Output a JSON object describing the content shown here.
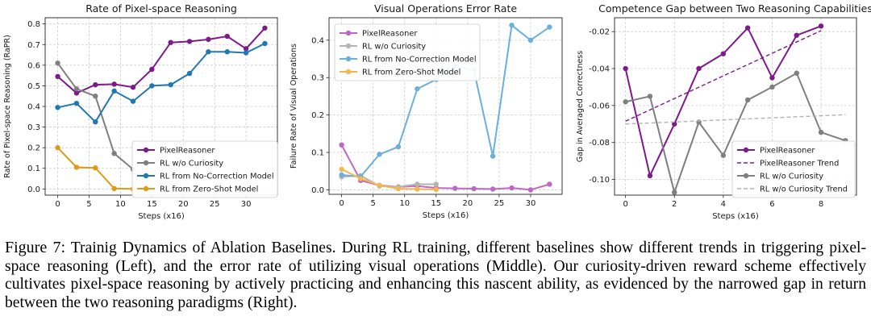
{
  "colors": {
    "purple": "#7e1a8c",
    "gray": "#7f7f7f",
    "blue": "#1f77b4",
    "orange": "#e09a1a",
    "lightpurple": "#c067c6",
    "lightgray": "#b4b4b4",
    "lightblue": "#6ab0da",
    "lightorange": "#f2b84f"
  },
  "chart_data": [
    {
      "type": "line",
      "title": "Rate of Pixel-space Reasoning",
      "xlabel": "Steps (x16)",
      "ylabel": "Rate of Pixel-space Reasoning (RaPR)",
      "xlim": [
        -2,
        35
      ],
      "ylim": [
        -0.03,
        0.83
      ],
      "xticks": [
        0,
        5,
        10,
        15,
        20,
        25,
        30
      ],
      "yticks": [
        0.0,
        0.1,
        0.2,
        0.3,
        0.4,
        0.5,
        0.6,
        0.7,
        0.8
      ],
      "ytick_decimals": 1,
      "grid": true,
      "legend_position": "lower-right",
      "series": [
        {
          "name": "PixelReasoner",
          "color": "purple",
          "marker": "circle",
          "x": [
            0,
            3,
            6,
            9,
            12,
            15,
            18,
            21,
            24,
            27,
            30,
            33
          ],
          "y": [
            0.545,
            0.465,
            0.505,
            0.508,
            0.493,
            0.58,
            0.71,
            0.715,
            0.725,
            0.74,
            0.68,
            0.78
          ]
        },
        {
          "name": "RL w/o Curiosity",
          "color": "gray",
          "marker": "circle",
          "x": [
            0,
            3,
            6,
            9,
            12
          ],
          "y": [
            0.61,
            0.485,
            0.45,
            0.172,
            0.095
          ]
        },
        {
          "name": "RL from No-Correction Model",
          "color": "blue",
          "marker": "circle",
          "x": [
            0,
            3,
            6,
            9,
            12,
            15,
            18,
            21,
            24,
            27,
            30,
            33
          ],
          "y": [
            0.395,
            0.415,
            0.325,
            0.475,
            0.425,
            0.5,
            0.505,
            0.56,
            0.665,
            0.665,
            0.66,
            0.705
          ]
        },
        {
          "name": "RL from Zero-Shot Model",
          "color": "orange",
          "marker": "circle",
          "x": [
            0,
            3,
            6,
            9,
            12
          ],
          "y": [
            0.2,
            0.105,
            0.102,
            0.002,
            0.0
          ]
        }
      ]
    },
    {
      "type": "line",
      "title": "Visual Operations Error Rate",
      "xlabel": "Steps (x16)",
      "ylabel": "Failure Rate of Visual Operations",
      "xlim": [
        -2,
        35
      ],
      "ylim": [
        -0.012,
        0.46
      ],
      "xticks": [
        0,
        5,
        10,
        15,
        20,
        25,
        30
      ],
      "yticks": [
        0.0,
        0.1,
        0.2,
        0.3,
        0.4
      ],
      "ytick_decimals": 1,
      "grid": true,
      "legend_position": "upper-left",
      "series": [
        {
          "name": "PixelReasoner",
          "color": "lightpurple",
          "marker": "circle",
          "x": [
            0,
            3,
            6,
            9,
            12,
            15,
            18,
            21,
            24,
            27,
            30,
            33
          ],
          "y": [
            0.12,
            0.025,
            0.012,
            0.008,
            0.01,
            0.005,
            0.004,
            0.003,
            0.002,
            0.005,
            0.0,
            0.015
          ]
        },
        {
          "name": "RL w/o Curiosity",
          "color": "lightgray",
          "marker": "circle",
          "x": [
            0,
            3,
            6,
            9,
            12,
            15
          ],
          "y": [
            0.035,
            0.038,
            0.01,
            0.008,
            0.015,
            0.015
          ]
        },
        {
          "name": "RL from No-Correction Model",
          "color": "lightblue",
          "marker": "circle",
          "x": [
            0,
            3,
            6,
            9,
            12,
            15,
            18,
            21,
            24,
            27,
            30,
            33
          ],
          "y": [
            0.04,
            0.035,
            0.095,
            0.115,
            0.27,
            0.295,
            0.33,
            0.32,
            0.09,
            0.44,
            0.4,
            0.435
          ]
        },
        {
          "name": "RL from Zero-Shot Model",
          "color": "lightorange",
          "marker": "circle",
          "x": [
            0,
            3,
            6,
            9,
            12,
            15
          ],
          "y": [
            0.055,
            0.03,
            0.012,
            0.003,
            0.002,
            0.001
          ]
        }
      ]
    },
    {
      "type": "line",
      "title": "Competence Gap between Two Reasoning Capabilities",
      "xlabel": "Steps (x16)",
      "ylabel": "Gap in Averaged Correctness",
      "xlim": [
        -0.45,
        9.45
      ],
      "ylim": [
        -0.1085,
        -0.0125
      ],
      "xticks": [
        0,
        2,
        4,
        6,
        8
      ],
      "yticks": [
        -0.1,
        -0.08,
        -0.06,
        -0.04,
        -0.02
      ],
      "ytick_decimals": 2,
      "grid": true,
      "legend_position": "lower-right",
      "series": [
        {
          "name": "PixelReasoner",
          "color": "purple",
          "marker": "circle",
          "x": [
            0,
            1,
            2,
            3,
            4,
            5,
            6,
            7,
            8
          ],
          "y": [
            -0.04,
            -0.098,
            -0.07,
            -0.04,
            -0.032,
            -0.018,
            -0.045,
            -0.022,
            -0.017
          ]
        },
        {
          "name": "PixelReasoner Trend",
          "color": "purple",
          "dashed": true,
          "x": [
            0,
            8
          ],
          "y": [
            -0.0685,
            -0.0195
          ]
        },
        {
          "name": "RL w/o Curiosity",
          "color": "gray",
          "marker": "circle",
          "x": [
            0,
            1,
            2,
            3,
            4,
            5,
            6,
            7,
            8,
            9
          ],
          "y": [
            -0.058,
            -0.055,
            -0.107,
            -0.069,
            -0.087,
            -0.057,
            -0.05,
            -0.0425,
            -0.0745,
            -0.079
          ]
        },
        {
          "name": "RL w/o Curiosity Trend",
          "color": "lightgray",
          "dashed": true,
          "x": [
            0,
            9
          ],
          "y": [
            -0.07,
            -0.065
          ]
        }
      ]
    }
  ],
  "caption": {
    "figure_label": "Figure 7:",
    "text": " Trainig Dynamics of Ablation Baselines. During RL training, different baselines show different trends in triggering pixel-space reasoning (Left), and the error rate of utilizing visual operations (Middle). Our curiosity-driven reward scheme effectively cultivates pixel-space reasoning by actively practicing and enhancing this nascent ability, as evidenced by the narrowed gap in return between the two reasoning paradigms (Right)."
  }
}
